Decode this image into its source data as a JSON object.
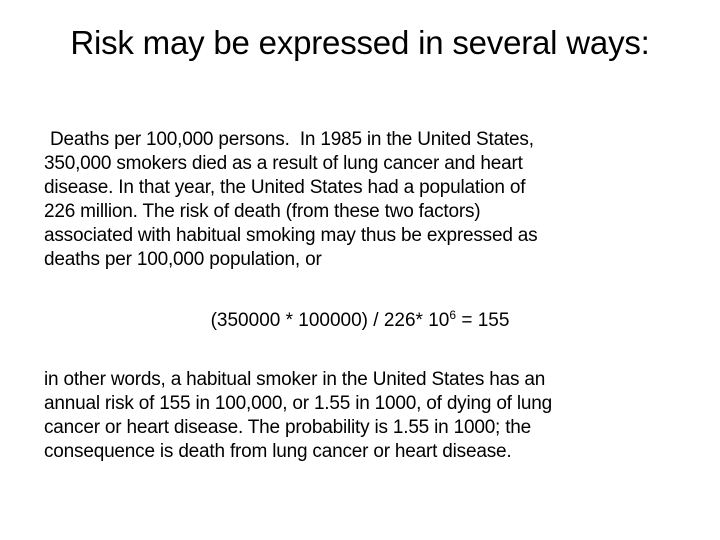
{
  "slide": {
    "title": "Risk may be expressed in several ways:",
    "paragraph1": {
      "lead": "Deaths per 100,000 persons.",
      "line1_rest": "  In 1985 in the United States,",
      "line2": "350,000 smokers died as a result of lung cancer and heart",
      "line3": "disease. In that year, the United States had a population of",
      "line4": "226 million. The risk of death (from these two factors)",
      "line5": "associated with habitual smoking may thus be expressed as",
      "line6": "deaths per 100,000 population, or"
    },
    "equation": {
      "left": "(350000 * 100000) / 226* 10",
      "exponent": "6",
      "right": " = 155"
    },
    "paragraph2": {
      "line1": "in other words, a habitual smoker in the United States has an",
      "line2": "annual risk of 155 in 100,000, or 1.55 in 1000, of dying of lung",
      "line3": "cancer or heart disease. The probability is 1.55 in 1000; the",
      "line4": "consequence is death from lung cancer or heart disease."
    }
  }
}
